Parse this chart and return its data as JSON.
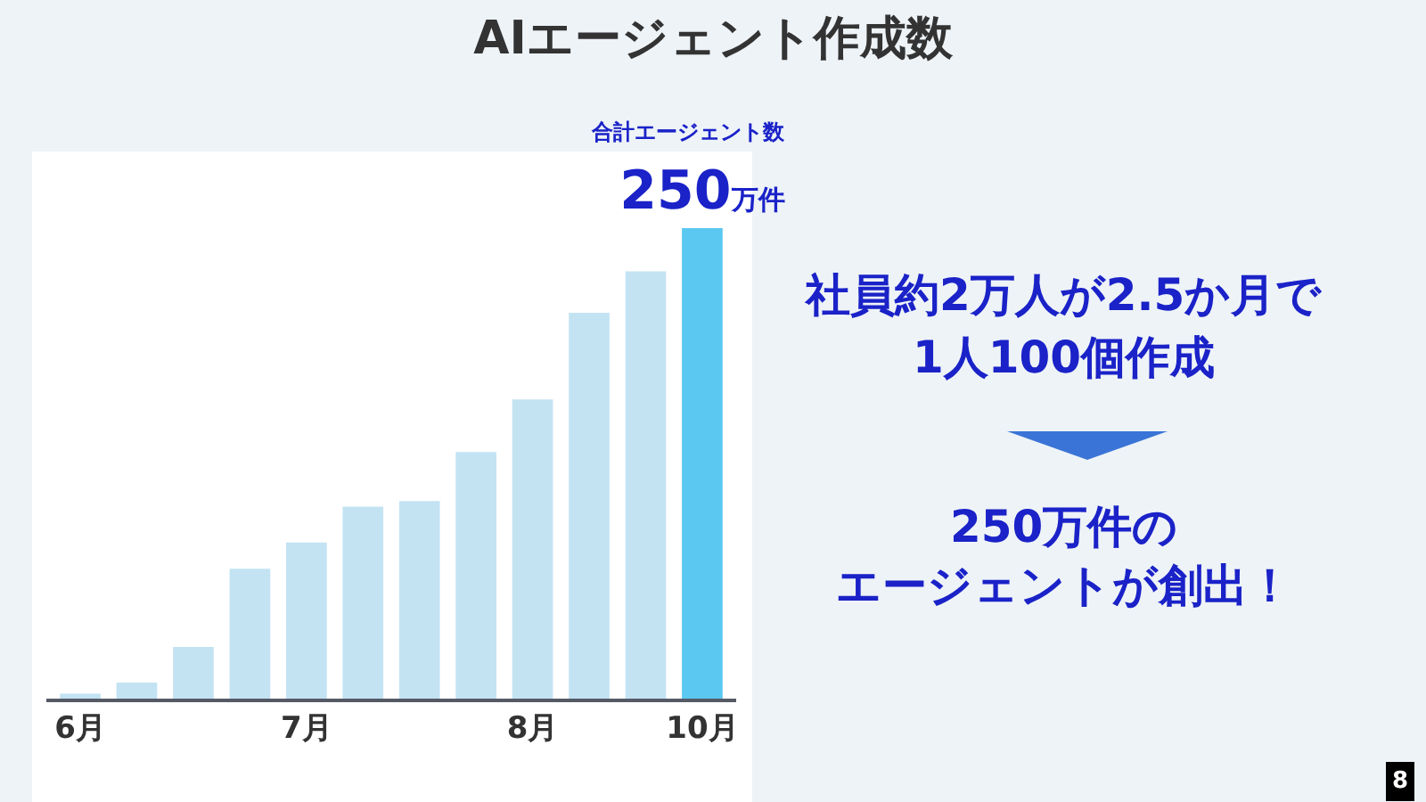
{
  "chart_data": {
    "type": "bar",
    "title": "AIエージェント作成数",
    "categories": [
      "6月",
      null,
      null,
      null,
      "7月",
      null,
      null,
      null,
      "8月",
      null,
      null,
      "10月"
    ],
    "values": [
      2.6,
      8.5,
      27.5,
      69,
      83,
      102,
      105,
      131,
      159,
      205,
      227,
      250
    ],
    "colors": [
      "#c3e3f3",
      "#c3e3f3",
      "#c3e3f3",
      "#c3e3f3",
      "#c3e3f3",
      "#c3e3f3",
      "#c3e3f3",
      "#c3e3f3",
      "#c3e3f3",
      "#c3e3f3",
      "#c3e3f3",
      "#5ac8f0"
    ],
    "value_labels": [
      null,
      null,
      null,
      null,
      null,
      null,
      null,
      null,
      null,
      null,
      null,
      "250万件"
    ],
    "annotations": [
      "合計エージェント数",
      "社員約2万人が2.5か月で",
      "1人100個作成",
      "250万件の",
      "エージェントが創出！",
      "8"
    ],
    "tick_labels": "x"
  }
}
